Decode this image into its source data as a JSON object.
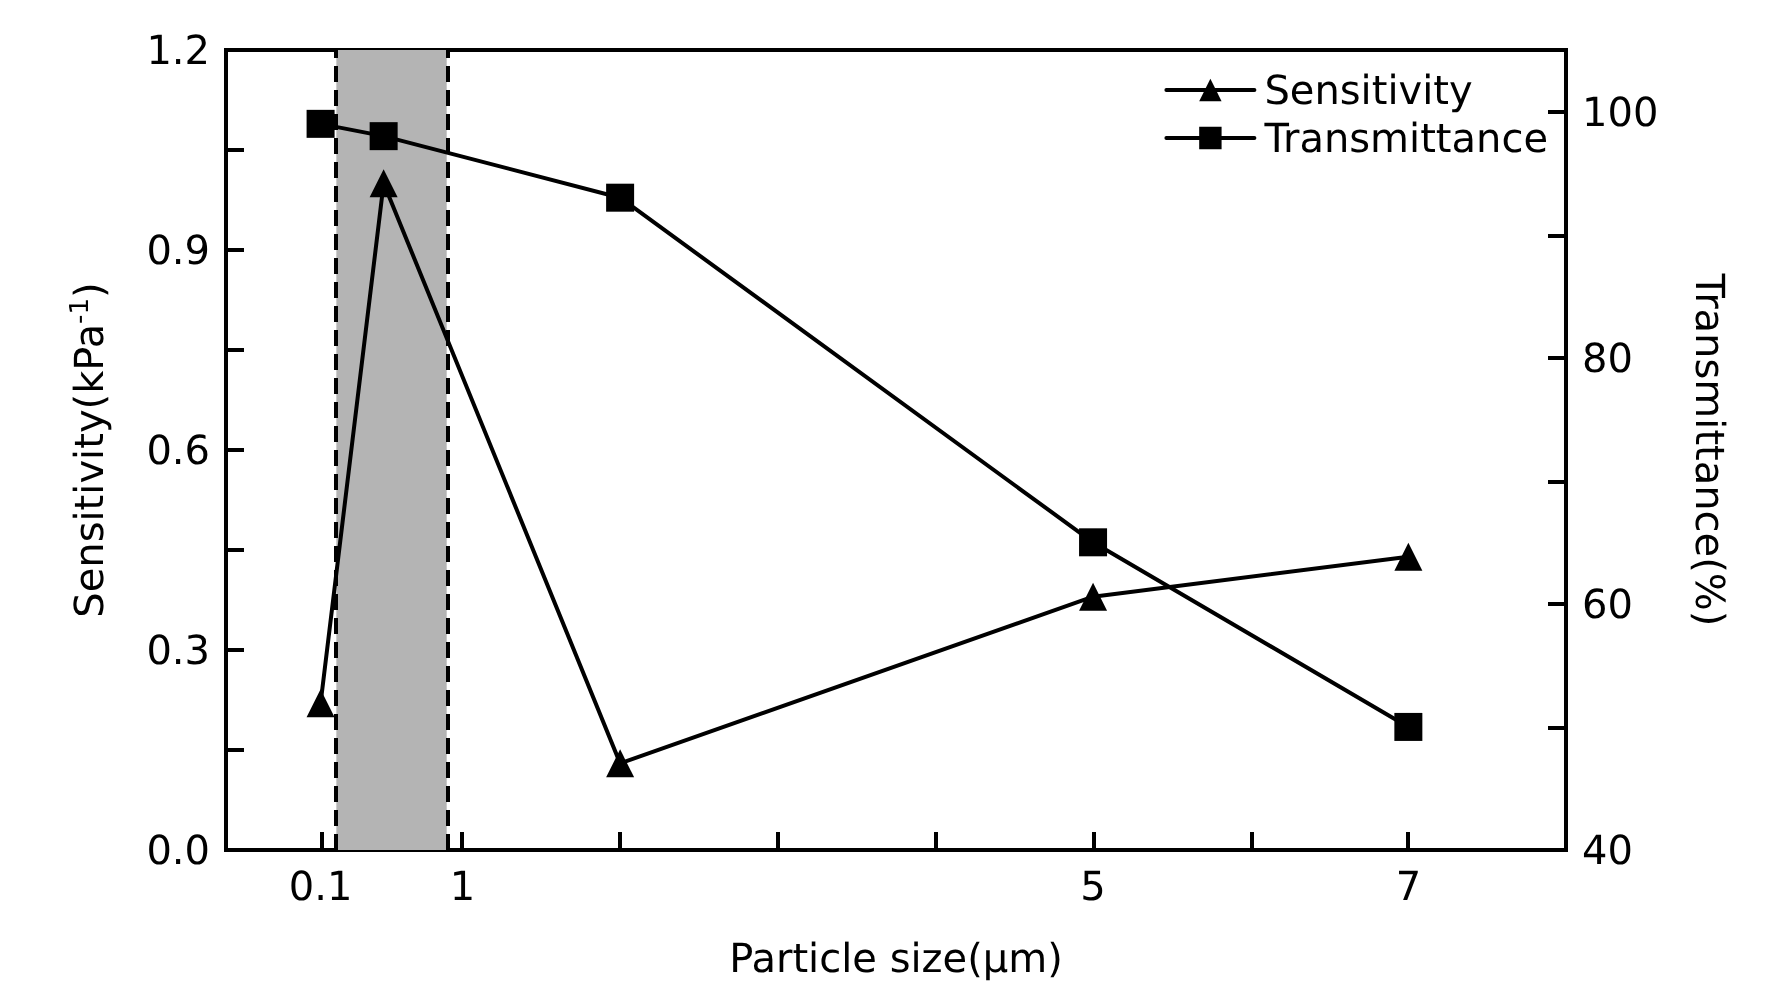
{
  "chart_data": {
    "type": "line",
    "xlabel": "Particle size(μm)",
    "ylabel": "Sensitivity(kPa$^{-1}$)",
    "y2label": "Transmittance(%)",
    "series": [
      {
        "name": "Sensitivity",
        "color": "#000000",
        "marker": "triangle",
        "x": [
          0.1,
          0.5,
          2,
          5,
          7
        ],
        "values": [
          0.22,
          1.0,
          0.13,
          0.38,
          0.44
        ]
      },
      {
        "name": "Transmittance",
        "color": "#000000",
        "marker": "square",
        "axis": "y2",
        "x": [
          0.1,
          0.5,
          2,
          5,
          7
        ],
        "values": [
          99,
          98,
          93,
          65,
          50
        ]
      }
    ],
    "xlim": [
      -0.5,
      8
    ],
    "xticks": [
      {
        "value": 0.1,
        "label": "0.1"
      },
      1,
      {
        "value": 2,
        "label": null
      },
      {
        "value": 3,
        "label": null
      },
      {
        "value": 4,
        "label": null
      },
      5,
      {
        "value": 6,
        "label": null
      },
      7
    ],
    "ylim": [
      0,
      1.2
    ],
    "yticks": [
      {
        "value": 0,
        "label": "0.0"
      },
      {
        "value": 0.15,
        "label": null
      },
      0.3,
      {
        "value": 0.45,
        "label": null
      },
      0.6,
      {
        "value": 0.75,
        "label": null
      },
      0.9,
      {
        "value": 1.05,
        "label": null
      },
      1.2
    ],
    "y2lim": [
      40,
      105
    ],
    "y2ticks": [
      40,
      {
        "value": 50,
        "label": null
      },
      60,
      {
        "value": 70,
        "label": null
      },
      80,
      {
        "value": 90,
        "label": null
      },
      100
    ],
    "bands": [
      {
        "axis": "x",
        "from": 0.2,
        "to": 0.9,
        "color": "#b4b4b4"
      }
    ],
    "ref_lines": [
      {
        "axis": "x",
        "value": 0.2,
        "line_style": "dashed"
      },
      {
        "axis": "x",
        "value": 0.9,
        "line_style": "dashed"
      }
    ],
    "legend": "top right",
    "grid": false,
    "line_style": "solid"
  }
}
